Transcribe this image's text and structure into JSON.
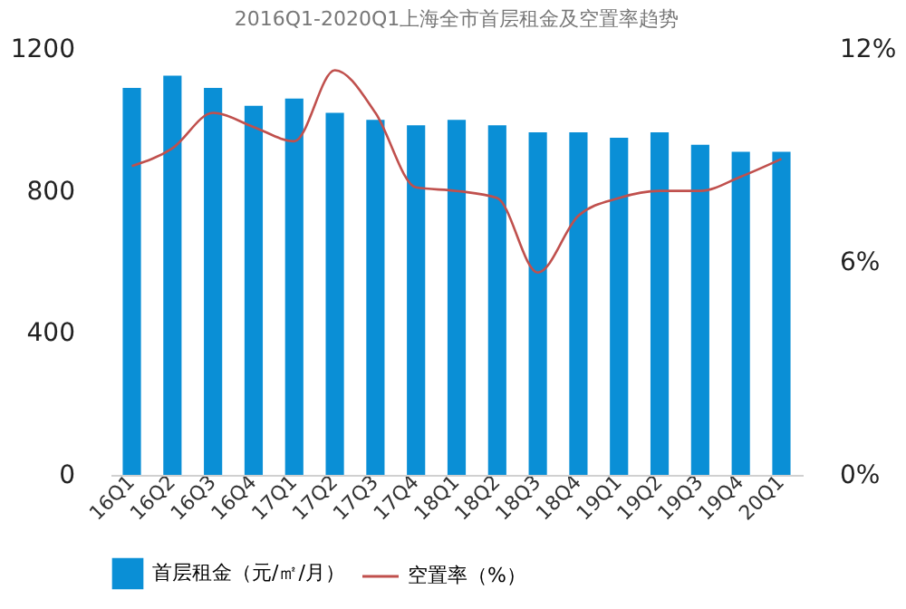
{
  "chart_data": {
    "type": "bar",
    "title": "2016Q1-2020Q1上海全市首层租金及空置率趋势",
    "categories": [
      "16Q1",
      "16Q2",
      "16Q3",
      "16Q4",
      "17Q1",
      "17Q2",
      "17Q3",
      "17Q4",
      "18Q1",
      "18Q2",
      "18Q3",
      "18Q4",
      "19Q1",
      "19Q2",
      "19Q3",
      "19Q4",
      "20Q1"
    ],
    "series": [
      {
        "name": "首层租金（元/㎡/月）",
        "color": "#0a8fd6",
        "values": [
          1090,
          1125,
          1090,
          1040,
          1060,
          1020,
          1000,
          985,
          1000,
          985,
          965,
          965,
          950,
          965,
          930,
          910,
          910
        ]
      },
      {
        "name": "空置率（%）",
        "type": "line",
        "axis": "y2",
        "color": "#c0504d",
        "values": [
          8.7,
          9.2,
          10.2,
          9.8,
          9.4,
          11.4,
          10.2,
          8.1,
          8.0,
          7.8,
          5.7,
          7.3,
          7.8,
          8.0,
          8.0,
          8.4,
          8.9
        ]
      }
    ],
    "ylim": [
      0,
      1200
    ],
    "yticks": [
      0,
      400,
      800,
      1200
    ],
    "y2lim": [
      0,
      12
    ],
    "y2ticks": [
      {
        "value": 0,
        "label": "0%"
      },
      {
        "value": 6,
        "label": "6%"
      },
      {
        "value": 12,
        "label": "12%"
      }
    ],
    "grid": false,
    "legend": "bottom"
  }
}
